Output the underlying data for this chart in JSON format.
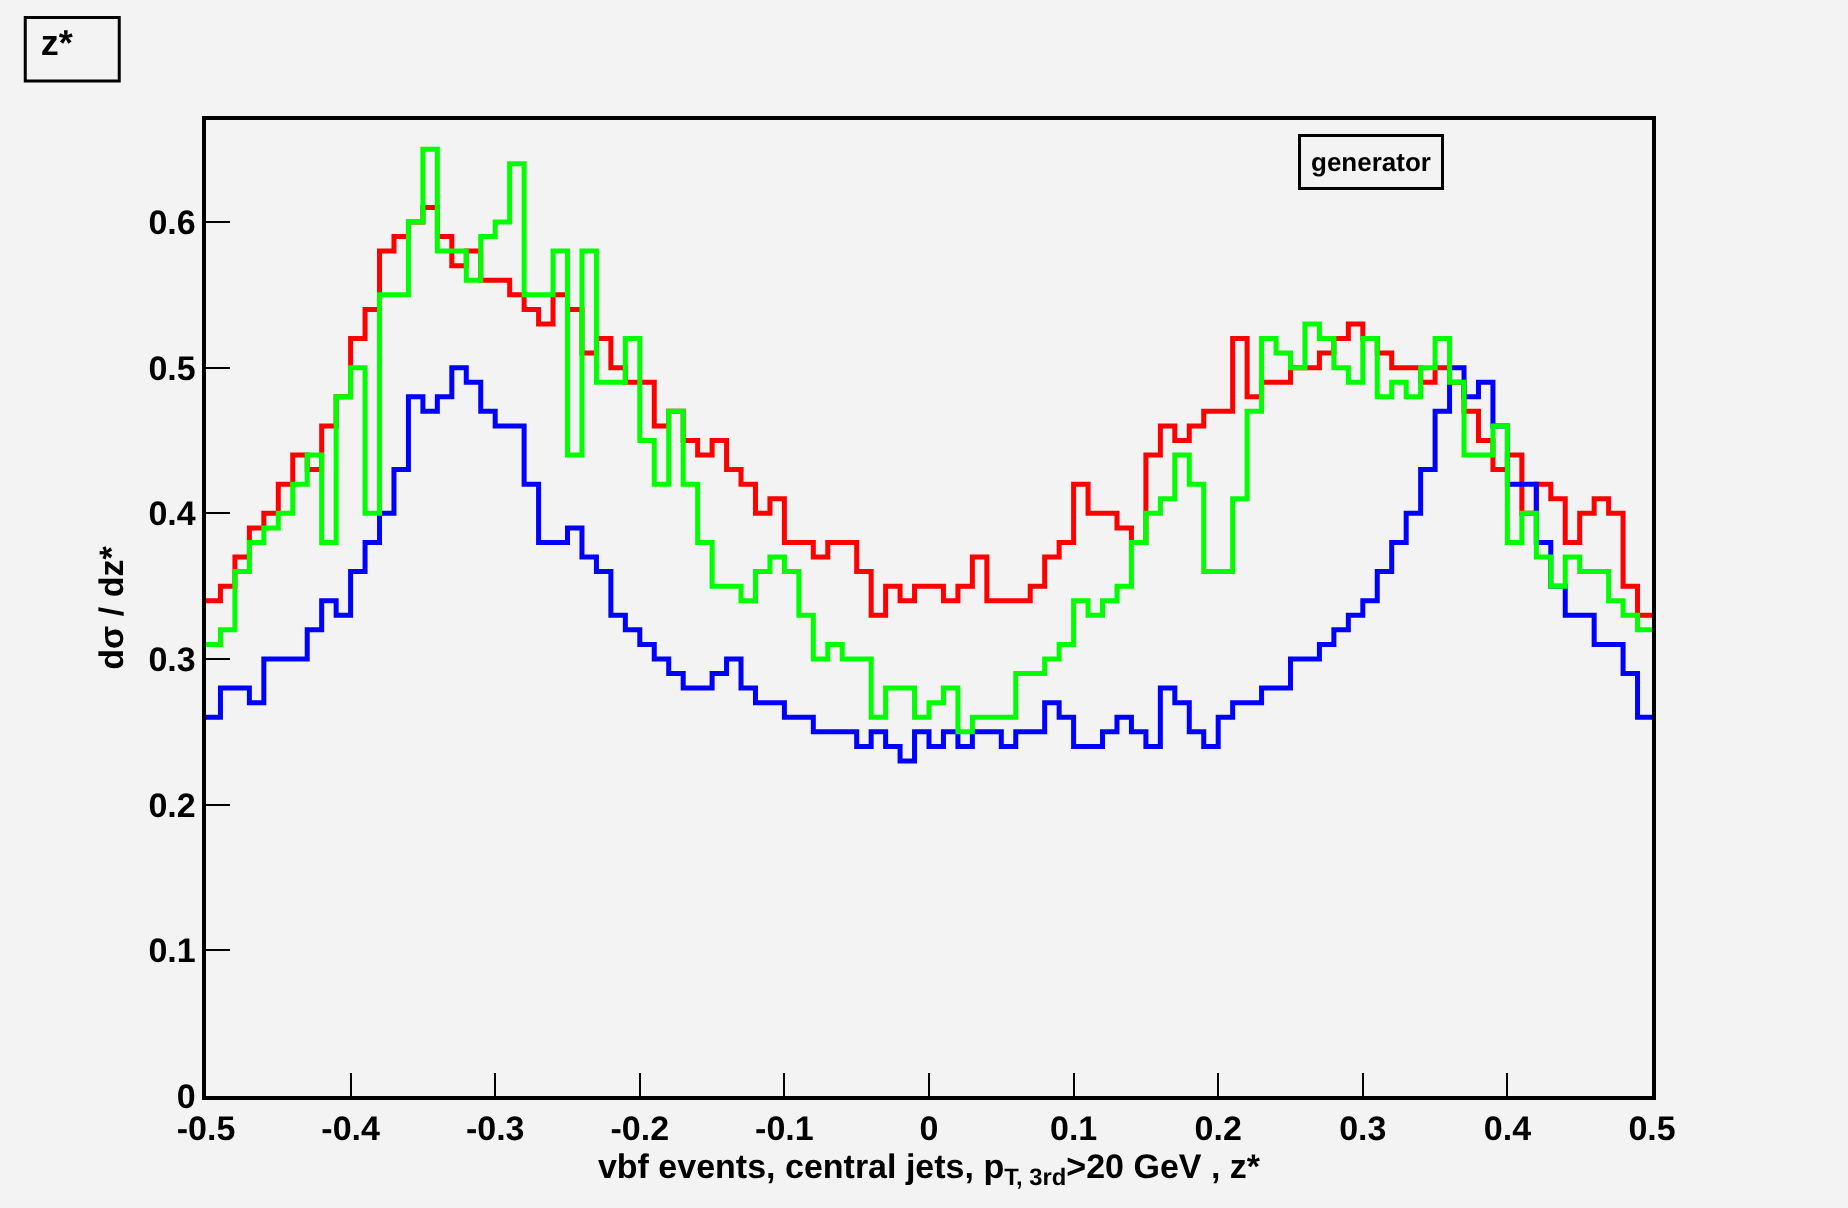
{
  "chart_data": {
    "type": "histogram",
    "title": "z*",
    "xlabel": "vbf events, central jets, p$_{T, 3rd}$>20 GeV , z*",
    "ylabel": "dσ / dz*",
    "annotations": [
      "generator"
    ],
    "grid": false,
    "bins": [
      -0.5,
      -0.49,
      -0.48,
      -0.47,
      -0.46,
      -0.45,
      -0.44,
      -0.43,
      -0.42,
      -0.41,
      -0.4,
      -0.39,
      -0.38,
      -0.37,
      -0.36,
      -0.35,
      -0.34,
      -0.33,
      -0.32,
      -0.31,
      -0.3,
      -0.29,
      -0.28,
      -0.27,
      -0.26,
      -0.25,
      -0.24,
      -0.23,
      -0.22,
      -0.21,
      -0.2,
      -0.19,
      -0.18,
      -0.17,
      -0.16,
      -0.15,
      -0.14,
      -0.13,
      -0.12,
      -0.11,
      -0.1,
      -0.09,
      -0.08,
      -0.07,
      -0.06,
      -0.05,
      -0.04,
      -0.03,
      -0.02,
      -0.01,
      0,
      0.01,
      0.02,
      0.03,
      0.04,
      0.05,
      0.06,
      0.07,
      0.08,
      0.09,
      0.1,
      0.11,
      0.12,
      0.13,
      0.14,
      0.15,
      0.16,
      0.17,
      0.18,
      0.19,
      0.2,
      0.21,
      0.22,
      0.23,
      0.24,
      0.25,
      0.26,
      0.27,
      0.28,
      0.29,
      0.3,
      0.31,
      0.32,
      0.33,
      0.34,
      0.35,
      0.36,
      0.37,
      0.38,
      0.39,
      0.4,
      0.41,
      0.42,
      0.43,
      0.44,
      0.45,
      0.46,
      0.47,
      0.48,
      0.49,
      0.5
    ],
    "series": [
      {
        "color": "#ff0000",
        "values": [
          0.34,
          0.35,
          0.37,
          0.39,
          0.4,
          0.42,
          0.44,
          0.43,
          0.46,
          0.48,
          0.52,
          0.54,
          0.58,
          0.59,
          0.6,
          0.61,
          0.59,
          0.57,
          0.58,
          0.56,
          0.56,
          0.55,
          0.54,
          0.53,
          0.55,
          0.54,
          0.51,
          0.52,
          0.5,
          0.49,
          0.49,
          0.46,
          0.47,
          0.45,
          0.44,
          0.45,
          0.43,
          0.42,
          0.4,
          0.41,
          0.38,
          0.38,
          0.37,
          0.38,
          0.38,
          0.36,
          0.33,
          0.35,
          0.34,
          0.35,
          0.35,
          0.34,
          0.35,
          0.37,
          0.34,
          0.34,
          0.34,
          0.35,
          0.37,
          0.38,
          0.42,
          0.4,
          0.4,
          0.39,
          0.38,
          0.44,
          0.46,
          0.45,
          0.46,
          0.47,
          0.47,
          0.52,
          0.48,
          0.49,
          0.49,
          0.5,
          0.5,
          0.51,
          0.52,
          0.53,
          0.52,
          0.51,
          0.5,
          0.5,
          0.49,
          0.5,
          0.49,
          0.47,
          0.45,
          0.43,
          0.44,
          0.4,
          0.42,
          0.41,
          0.38,
          0.4,
          0.41,
          0.4,
          0.35,
          0.33
        ]
      },
      {
        "color": "#0000ff",
        "values": [
          0.26,
          0.28,
          0.28,
          0.27,
          0.3,
          0.3,
          0.3,
          0.32,
          0.34,
          0.33,
          0.36,
          0.38,
          0.4,
          0.43,
          0.48,
          0.47,
          0.48,
          0.5,
          0.49,
          0.47,
          0.46,
          0.46,
          0.42,
          0.38,
          0.38,
          0.39,
          0.37,
          0.36,
          0.33,
          0.32,
          0.31,
          0.3,
          0.29,
          0.28,
          0.28,
          0.29,
          0.3,
          0.28,
          0.27,
          0.27,
          0.26,
          0.26,
          0.25,
          0.25,
          0.25,
          0.24,
          0.25,
          0.24,
          0.23,
          0.25,
          0.24,
          0.25,
          0.24,
          0.25,
          0.25,
          0.24,
          0.25,
          0.25,
          0.27,
          0.26,
          0.24,
          0.24,
          0.25,
          0.26,
          0.25,
          0.24,
          0.28,
          0.27,
          0.25,
          0.24,
          0.26,
          0.27,
          0.27,
          0.28,
          0.28,
          0.3,
          0.3,
          0.31,
          0.32,
          0.33,
          0.34,
          0.36,
          0.38,
          0.4,
          0.43,
          0.47,
          0.5,
          0.48,
          0.49,
          0.46,
          0.42,
          0.42,
          0.38,
          0.35,
          0.33,
          0.33,
          0.31,
          0.31,
          0.29,
          0.26
        ]
      },
      {
        "color": "#00ff00",
        "values": [
          0.31,
          0.32,
          0.36,
          0.38,
          0.39,
          0.4,
          0.42,
          0.44,
          0.38,
          0.48,
          0.5,
          0.4,
          0.55,
          0.55,
          0.6,
          0.65,
          0.58,
          0.58,
          0.56,
          0.59,
          0.6,
          0.64,
          0.55,
          0.55,
          0.58,
          0.44,
          0.58,
          0.49,
          0.49,
          0.52,
          0.45,
          0.42,
          0.47,
          0.42,
          0.38,
          0.35,
          0.35,
          0.34,
          0.36,
          0.37,
          0.36,
          0.33,
          0.3,
          0.31,
          0.3,
          0.3,
          0.26,
          0.28,
          0.28,
          0.26,
          0.27,
          0.28,
          0.25,
          0.26,
          0.26,
          0.26,
          0.29,
          0.29,
          0.3,
          0.31,
          0.34,
          0.33,
          0.34,
          0.35,
          0.38,
          0.4,
          0.41,
          0.44,
          0.42,
          0.36,
          0.36,
          0.41,
          0.47,
          0.52,
          0.51,
          0.5,
          0.53,
          0.52,
          0.5,
          0.49,
          0.52,
          0.48,
          0.49,
          0.48,
          0.5,
          0.52,
          0.49,
          0.44,
          0.44,
          0.46,
          0.38,
          0.4,
          0.37,
          0.35,
          0.37,
          0.36,
          0.36,
          0.34,
          0.33,
          0.32
        ]
      }
    ],
    "xlim": [
      -0.5,
      0.5
    ],
    "xticks": [
      -0.5,
      -0.4,
      -0.3,
      -0.2,
      -0.1,
      0,
      0.1,
      0.2,
      0.3,
      0.4,
      0.5
    ],
    "ylim": [
      0,
      0.67
    ],
    "yticks": [
      0,
      0.1,
      0.2,
      0.3,
      0.4,
      0.5,
      0.6
    ]
  }
}
